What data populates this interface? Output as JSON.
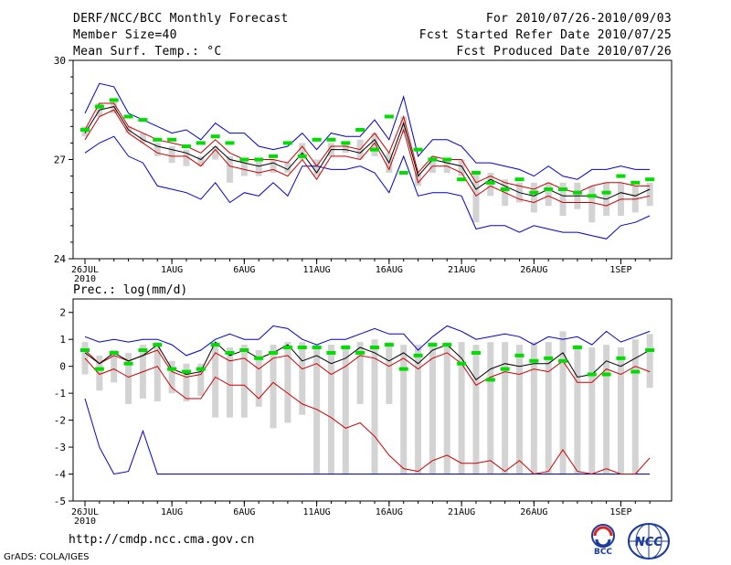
{
  "header": {
    "title": "DERF/NCC/BCC Monthly Forecast",
    "member_size": "Member Size=40",
    "variable": "Mean Surf. Temp.: °C",
    "forecast_period": "For 2010/07/26-2010/09/03",
    "start_date": "Fcst Started Refer Date 2010/07/25",
    "produced_date": "Fcst Produced Date 2010/07/26"
  },
  "footer": {
    "url": "http://cmdp.ncc.cma.gov.cn",
    "grads": "GrADS: COLA/IGES",
    "logo_bcc": "BCC",
    "logo_ncc": "NCC"
  },
  "chart_data": [
    {
      "type": "line",
      "title": "Mean Surf. Temp.: °C",
      "ylabel": "°C",
      "ylim": [
        24,
        30
      ],
      "yticks": [
        "24",
        "27",
        "30"
      ],
      "xticks": [
        "26JUL\n2010",
        "1AUG",
        "6AUG",
        "11AUG",
        "16AUG",
        "21AUG",
        "26AUG",
        "1SEP"
      ],
      "days": 40,
      "colors": {
        "max": "#0000cc",
        "upper": "#cc0000",
        "mean": "#000000",
        "ensemble": "#00dd00",
        "box": "#d3d3d3"
      },
      "series": [
        {
          "name": "max",
          "values": [
            28.4,
            29.3,
            29.2,
            28.4,
            28.2,
            28.0,
            27.8,
            27.9,
            27.6,
            28.1,
            27.8,
            27.8,
            27.4,
            27.3,
            27.4,
            27.8,
            27.3,
            27.8,
            27.7,
            27.7,
            28.2,
            27.6,
            28.9,
            27.1,
            27.6,
            27.6,
            27.4,
            26.9,
            26.9,
            26.8,
            26.7,
            26.5,
            26.8,
            26.5,
            26.4,
            26.7,
            26.7,
            26.8,
            26.7,
            26.7
          ]
        },
        {
          "name": "upper",
          "values": [
            27.9,
            28.7,
            28.7,
            28.0,
            27.8,
            27.6,
            27.5,
            27.4,
            27.2,
            27.6,
            27.2,
            27.0,
            27.0,
            27.0,
            26.9,
            27.4,
            26.8,
            27.4,
            27.4,
            27.3,
            27.8,
            27.2,
            28.3,
            26.6,
            27.1,
            27.0,
            27.0,
            26.3,
            26.5,
            26.3,
            26.2,
            26.1,
            26.3,
            26.1,
            26.0,
            26.2,
            26.3,
            26.3,
            26.2,
            26.2
          ]
        },
        {
          "name": "mean",
          "values": [
            27.8,
            28.5,
            28.6,
            27.9,
            27.6,
            27.4,
            27.3,
            27.2,
            27.0,
            27.4,
            27.0,
            26.9,
            26.8,
            26.9,
            26.7,
            27.2,
            26.6,
            27.3,
            27.3,
            27.2,
            27.6,
            26.9,
            28.1,
            26.5,
            27.0,
            26.9,
            26.8,
            26.1,
            26.4,
            26.2,
            26.0,
            25.9,
            26.1,
            25.9,
            25.9,
            25.9,
            25.8,
            26.0,
            25.9,
            26.1
          ]
        },
        {
          "name": "lower",
          "values": [
            27.6,
            28.3,
            28.5,
            27.8,
            27.5,
            27.2,
            27.1,
            27.1,
            26.8,
            27.3,
            26.8,
            26.7,
            26.6,
            26.7,
            26.5,
            27.0,
            26.4,
            27.1,
            27.1,
            27.0,
            27.5,
            26.7,
            27.9,
            26.3,
            26.8,
            26.8,
            26.6,
            25.9,
            26.2,
            26.0,
            25.8,
            25.7,
            25.9,
            25.7,
            25.7,
            25.7,
            25.6,
            25.8,
            25.8,
            25.9
          ]
        },
        {
          "name": "min",
          "values": [
            27.2,
            27.5,
            27.7,
            27.1,
            26.9,
            26.2,
            26.1,
            26.0,
            25.8,
            26.3,
            25.7,
            26.0,
            25.9,
            26.3,
            25.9,
            26.8,
            26.8,
            26.7,
            26.7,
            26.8,
            26.6,
            26.0,
            27.1,
            25.9,
            26.0,
            26.0,
            25.9,
            24.9,
            25.0,
            25.0,
            24.8,
            25.0,
            24.9,
            24.8,
            24.8,
            24.7,
            24.6,
            25.0,
            25.1,
            25.3
          ]
        },
        {
          "name": "ensemble",
          "values": [
            27.9,
            28.6,
            28.8,
            28.3,
            28.2,
            27.6,
            27.6,
            27.4,
            27.5,
            27.7,
            27.5,
            27.0,
            27.0,
            27.1,
            27.5,
            27.1,
            27.6,
            27.6,
            27.5,
            27.9,
            27.3,
            28.3,
            26.6,
            27.3,
            27.0,
            27.0,
            26.4,
            26.6,
            26.3,
            26.1,
            26.4,
            26.0,
            26.1,
            26.1,
            26.0,
            25.9,
            26.0,
            26.5,
            26.3,
            26.4
          ]
        },
        {
          "name": "box_top",
          "values": [
            28.0,
            28.7,
            28.8,
            28.0,
            27.8,
            27.5,
            27.4,
            27.3,
            27.1,
            27.4,
            27.1,
            27.0,
            27.0,
            27.0,
            26.9,
            27.5,
            27.0,
            27.5,
            27.5,
            27.6,
            27.8,
            27.2,
            28.3,
            26.6,
            27.1,
            27.0,
            27.0,
            26.6,
            26.6,
            26.4,
            26.3,
            26.3,
            26.3,
            26.3,
            26.3,
            26.2,
            26.3,
            26.3,
            26.2,
            26.3
          ]
        },
        {
          "name": "box_bottom",
          "values": [
            27.7,
            28.3,
            28.4,
            27.8,
            27.5,
            27.1,
            26.9,
            26.8,
            26.8,
            27.0,
            26.3,
            26.5,
            26.5,
            26.6,
            26.6,
            27.0,
            26.5,
            27.1,
            27.2,
            27.0,
            27.1,
            26.6,
            27.8,
            26.2,
            26.6,
            26.6,
            26.5,
            25.1,
            25.9,
            25.6,
            25.7,
            25.4,
            25.6,
            25.3,
            25.5,
            25.1,
            25.3,
            25.3,
            25.4,
            25.6
          ]
        }
      ]
    },
    {
      "type": "line",
      "title": "Prec.: log(mm/d)",
      "ylabel": "log(mm/d)",
      "ylim": [
        -5,
        2.5
      ],
      "yticks": [
        "-5",
        "-4",
        "-3",
        "-2",
        "-1",
        "0",
        "1",
        "2"
      ],
      "xticks": [
        "26JUL\n2010",
        "1AUG",
        "6AUG",
        "11AUG",
        "16AUG",
        "21AUG",
        "26AUG",
        "1SEP"
      ],
      "days": 40,
      "colors": {
        "max": "#0000cc",
        "upper": "#cc0000",
        "mean": "#000000",
        "ensemble": "#00dd00",
        "box": "#d3d3d3"
      },
      "series": [
        {
          "name": "max",
          "values": [
            1.1,
            0.9,
            1.0,
            0.9,
            1.0,
            1.0,
            0.8,
            0.4,
            0.6,
            1.0,
            1.2,
            1.0,
            1.0,
            1.5,
            1.4,
            1.0,
            0.8,
            1.0,
            1.0,
            1.2,
            1.4,
            1.2,
            1.2,
            0.6,
            1.1,
            1.5,
            1.3,
            1.0,
            1.1,
            1.2,
            1.1,
            0.8,
            1.1,
            1.0,
            1.1,
            0.8,
            1.3,
            0.9,
            1.1,
            1.3
          ]
        },
        {
          "name": "mean",
          "values": [
            0.5,
            0.1,
            0.5,
            0.2,
            0.4,
            0.8,
            -0.1,
            -0.3,
            -0.2,
            0.9,
            0.4,
            0.6,
            0.3,
            0.5,
            0.8,
            0.2,
            0.4,
            0.1,
            0.3,
            0.7,
            0.5,
            0.2,
            0.5,
            0.1,
            0.6,
            0.8,
            0.3,
            -0.5,
            -0.1,
            0.1,
            0.0,
            0.1,
            0.1,
            0.5,
            -0.4,
            -0.3,
            0.2,
            0.0,
            0.3,
            0.6
          ]
        },
        {
          "name": "upper",
          "values": [
            0.3,
            -0.3,
            -0.1,
            -0.4,
            -0.2,
            0.0,
            -0.8,
            -1.2,
            -1.2,
            -0.4,
            -0.7,
            -0.7,
            -1.2,
            -0.6,
            -1.0,
            -1.4,
            -1.6,
            -1.9,
            -2.3,
            -2.1,
            -2.6,
            -3.3,
            -3.8,
            -3.9,
            -3.5,
            -3.3,
            -3.6,
            -3.6,
            -3.5,
            -3.9,
            -3.5,
            -4.0,
            -3.9,
            -3.1,
            -3.9,
            -4.0,
            -3.8,
            -4.0,
            -4.0,
            -3.4
          ]
        },
        {
          "name": "lower",
          "values": [
            0.6,
            0.1,
            0.4,
            0.2,
            0.4,
            0.6,
            -0.2,
            -0.4,
            -0.3,
            0.5,
            0.2,
            0.3,
            -0.1,
            0.3,
            0.4,
            -0.1,
            0.1,
            -0.3,
            0.0,
            0.4,
            0.3,
            0.0,
            0.3,
            -0.1,
            0.3,
            0.5,
            0.1,
            -0.7,
            -0.4,
            -0.2,
            -0.3,
            -0.1,
            -0.2,
            0.2,
            -0.6,
            -0.6,
            -0.1,
            -0.3,
            0.0,
            -0.2
          ]
        },
        {
          "name": "min",
          "values": [
            -1.2,
            -3.0,
            -4.0,
            -3.9,
            -2.4,
            -4.0,
            -4.0,
            -4.0,
            -4.0,
            -4.0,
            -4.0,
            -4.0,
            -4.0,
            -4.0,
            -4.0,
            -4.0,
            -4.0,
            -4.0,
            -4.0,
            -4.0,
            -4.0,
            -4.0,
            -4.0,
            -4.0,
            -4.0,
            -4.0,
            -4.0,
            -4.0,
            -4.0,
            -4.0,
            -4.0,
            -4.0,
            -4.0,
            -4.0,
            -4.0,
            -4.0,
            -4.0,
            -4.0,
            -4.0,
            -4.0
          ]
        },
        {
          "name": "ensemble",
          "values": [
            0.6,
            -0.1,
            0.5,
            0.1,
            0.6,
            0.8,
            -0.1,
            -0.2,
            -0.1,
            0.8,
            0.5,
            0.6,
            0.3,
            0.5,
            0.7,
            0.7,
            0.7,
            0.5,
            0.7,
            0.5,
            0.7,
            0.8,
            -0.1,
            0.4,
            0.8,
            0.8,
            0.1,
            0.5,
            -0.5,
            -0.1,
            0.4,
            0.2,
            0.3,
            0.2,
            0.7,
            -0.3,
            -0.3,
            0.3,
            -0.2,
            0.6
          ]
        },
        {
          "name": "box_top",
          "values": [
            0.9,
            0.4,
            0.6,
            0.5,
            0.8,
            0.9,
            0.2,
            0.1,
            0.1,
            0.9,
            0.7,
            0.8,
            0.6,
            0.8,
            0.9,
            0.9,
            0.8,
            0.8,
            0.8,
            0.9,
            1.0,
            0.9,
            0.8,
            0.8,
            0.9,
            0.9,
            0.9,
            0.8,
            0.9,
            0.9,
            0.8,
            0.9,
            0.9,
            1.3,
            0.8,
            0.7,
            0.8,
            0.7,
            1.0,
            1.2
          ]
        },
        {
          "name": "box_bottom",
          "values": [
            -0.3,
            -0.9,
            -0.6,
            -1.4,
            -1.2,
            -1.3,
            -1.0,
            -1.3,
            -1.1,
            -1.9,
            -1.9,
            -1.9,
            -1.5,
            -2.3,
            -2.1,
            -1.8,
            -4.0,
            -4.0,
            -4.0,
            -1.4,
            -4.0,
            -1.4,
            -4.0,
            -4.0,
            -4.0,
            -4.0,
            -4.0,
            -4.0,
            -4.0,
            -4.0,
            -4.0,
            -4.0,
            -4.0,
            -4.0,
            -4.0,
            -4.0,
            -4.0,
            -4.0,
            -4.0,
            -0.8
          ]
        }
      ]
    }
  ]
}
